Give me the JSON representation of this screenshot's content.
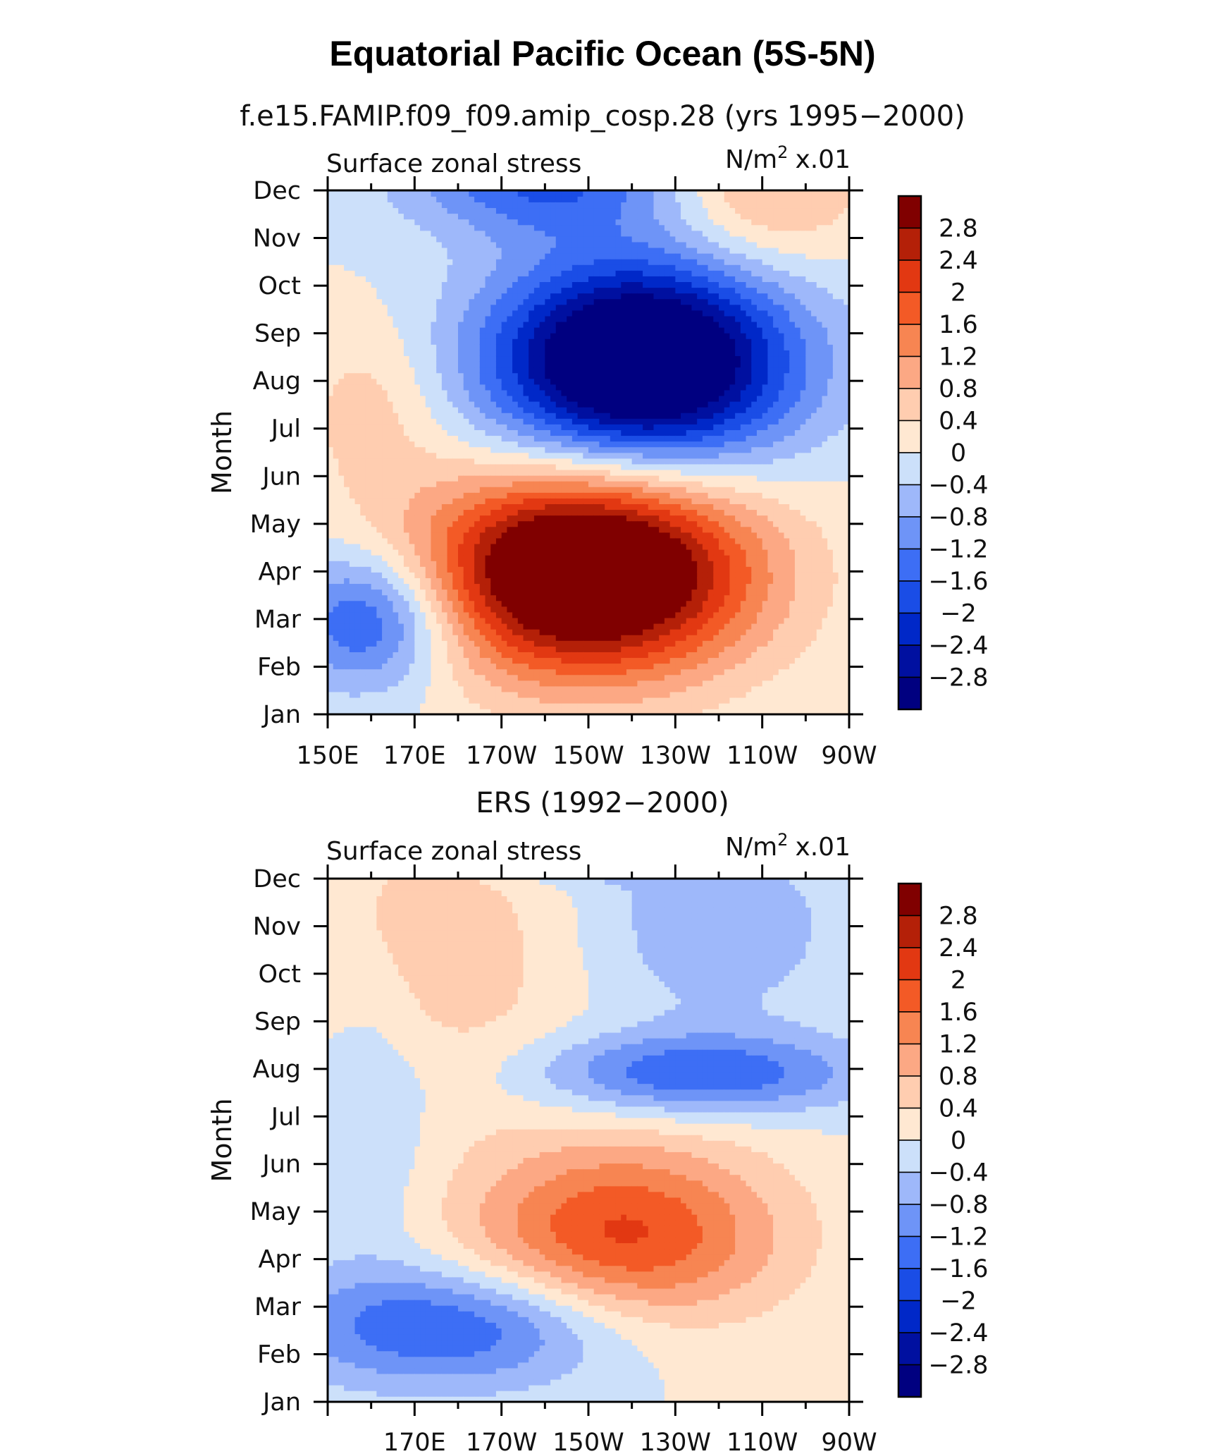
{
  "figure": {
    "title": "Equatorial Pacific Ocean (5S-5N)"
  },
  "chart_data": [
    {
      "type": "heatmap",
      "subtitle": "f.e15.FAMIP.f09_f09.amip_cosp.28 (yrs 1995−2000)",
      "left_label": "Surface zonal stress",
      "units": "N/m",
      "units_sup": "2",
      "units_scale": "x.01",
      "ylabel": "Month",
      "y_ticks": [
        "Jan",
        "Feb",
        "Mar",
        "Apr",
        "May",
        "Jun",
        "Jul",
        "Aug",
        "Sep",
        "Oct",
        "Nov",
        "Dec"
      ],
      "x_ticks": [
        "150E",
        "170E",
        "170W",
        "150W",
        "130W",
        "110W",
        "90W"
      ],
      "levels": [
        -2.8,
        -2.4,
        -2,
        -1.6,
        -1.2,
        -0.8,
        -0.4,
        0,
        0.4,
        0.8,
        1.2,
        1.6,
        2,
        2.4,
        2.8
      ],
      "level_labels": [
        "2.8",
        "2.4",
        "2",
        "1.6",
        "1.2",
        "0.8",
        "0.4",
        "0",
        "−0.4",
        "−0.8",
        "−1.2",
        "−1.6",
        "−2",
        "−2.4",
        "−2.8"
      ],
      "colors": [
        "#000080",
        "#0010A0",
        "#0028C8",
        "#1A4DE6",
        "#3D6EF5",
        "#6E94F7",
        "#9EB8FA",
        "#CCE0FA",
        "#FFE8D2",
        "#FFCDB0",
        "#FCA884",
        "#F78552",
        "#F35A26",
        "#E23812",
        "#B42008",
        "#800000"
      ],
      "anomalies": [
        {
          "lon": 210,
          "month": 3.0,
          "amp": 4.5,
          "slon": 26,
          "smon": 1.5
        },
        {
          "lon": 222,
          "month": 7.4,
          "amp": -4.4,
          "slon": 24,
          "smon": 1.5
        },
        {
          "lon": 160,
          "month": 2.0,
          "amp": -1.9,
          "slon": 14,
          "smon": 1.0
        },
        {
          "lon": 200,
          "month": 11.2,
          "amp": -1.6,
          "slon": 22,
          "smon": 0.8
        },
        {
          "lon": 250,
          "month": 11.0,
          "amp": 1.0,
          "slon": 16,
          "smon": 1.2
        },
        {
          "lon": 160,
          "month": 6.5,
          "amp": 0.6,
          "slon": 12,
          "smon": 1.3
        }
      ]
    },
    {
      "type": "heatmap",
      "subtitle": "ERS (1992−2000)",
      "left_label": "Surface zonal stress",
      "units": "N/m",
      "units_sup": "2",
      "units_scale": "x.01",
      "ylabel": "Month",
      "y_ticks": [
        "Jan",
        "Feb",
        "Mar",
        "Apr",
        "May",
        "Jun",
        "Jul",
        "Aug",
        "Sep",
        "Oct",
        "Nov",
        "Dec"
      ],
      "x_ticks": [
        "170E",
        "170W",
        "150W",
        "130W",
        "110W",
        "90W"
      ],
      "levels": [
        -2.8,
        -2.4,
        -2,
        -1.6,
        -1.2,
        -0.8,
        -0.4,
        0,
        0.4,
        0.8,
        1.2,
        1.6,
        2,
        2.4,
        2.8
      ],
      "level_labels": [
        "2.8",
        "2.4",
        "2",
        "1.6",
        "1.2",
        "0.8",
        "0.4",
        "0",
        "−0.4",
        "−0.8",
        "−1.2",
        "−1.6",
        "−2",
        "−2.4",
        "−2.8"
      ],
      "colors": [
        "#000080",
        "#0010A0",
        "#0028C8",
        "#1A4DE6",
        "#3D6EF5",
        "#6E94F7",
        "#9EB8FA",
        "#CCE0FA",
        "#FFE8D2",
        "#FFCDB0",
        "#FCA884",
        "#F78552",
        "#F35A26",
        "#E23812",
        "#B42008",
        "#800000"
      ],
      "anomalies": [
        {
          "lon": 218,
          "month": 3.5,
          "amp": 2.1,
          "slon": 25,
          "smon": 1.4
        },
        {
          "lon": 235,
          "month": 6.9,
          "amp": -1.6,
          "slon": 26,
          "smon": 0.6
        },
        {
          "lon": 180,
          "month": 1.6,
          "amp": -1.7,
          "slon": 28,
          "smon": 0.9
        },
        {
          "lon": 208,
          "month": 11.9,
          "amp": -1.6,
          "slon": 15,
          "smon": 0.5
        },
        {
          "lon": 238,
          "month": 10.0,
          "amp": -0.7,
          "slon": 22,
          "smon": 1.5
        },
        {
          "lon": 175,
          "month": 9.5,
          "amp": 0.7,
          "slon": 24,
          "smon": 2.2
        },
        {
          "lon": 160,
          "month": 6.5,
          "amp": -0.5,
          "slon": 10,
          "smon": 2.5
        }
      ]
    }
  ]
}
